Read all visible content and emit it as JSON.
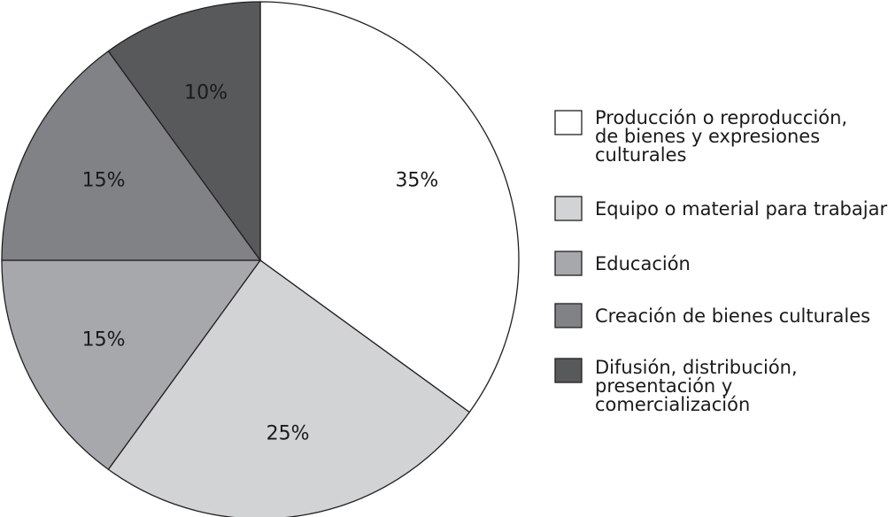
{
  "chart_data": {
    "type": "pie",
    "categories": [
      "Producción o reproducción, de bienes y expresiones culturales",
      "Equipo o material para trabajar",
      "Educación",
      "Creación de bienes culturales",
      "Difusión, distribución, presentación y comercialización"
    ],
    "values": [
      35,
      25,
      15,
      15,
      10
    ],
    "value_labels": [
      "35%",
      "25%",
      "15%",
      "15%",
      "10%"
    ],
    "legend_lines": [
      [
        "Producción o reproducción,",
        "de bienes y expresiones",
        "culturales"
      ],
      [
        "Equipo o material para trabajar"
      ],
      [
        "Educación"
      ],
      [
        "Creación de bienes culturales"
      ],
      [
        "Difusión, distribución,",
        "presentación y",
        "comercialización"
      ]
    ],
    "colors": [
      "#ffffff",
      "#d2d3d5",
      "#a6a8ab",
      "#808285",
      "#58595b"
    ],
    "label_colors": [
      "#1a1a1a",
      "#1a1a1a",
      "#1a1a1a",
      "#1a1a1a",
      "#ffffff"
    ],
    "start_angle": "12 o'clock",
    "direction": "clockwise",
    "legend_position": "right",
    "title": ""
  }
}
